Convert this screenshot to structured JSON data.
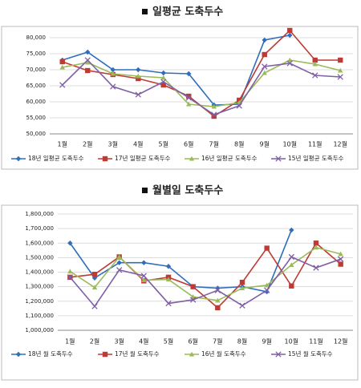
{
  "chart_data": [
    {
      "type": "line",
      "title": "일평균 도축두수",
      "categories": [
        "1월",
        "2월",
        "3월",
        "4월",
        "5월",
        "6월",
        "7월",
        "8월",
        "9월",
        "10월",
        "11월",
        "12월"
      ],
      "ylim": [
        50000,
        80000
      ],
      "yticks": [
        {
          "value": 50000,
          "label": "50,000"
        },
        {
          "value": 55000,
          "label": "55,000"
        },
        {
          "value": 60000,
          "label": "60,000"
        },
        {
          "value": 65000,
          "label": "65,000"
        },
        {
          "value": 70000,
          "label": "70,000"
        },
        {
          "value": 75000,
          "label": "75,000"
        },
        {
          "value": 80000,
          "label": "80,000"
        }
      ],
      "grid": true,
      "series": [
        {
          "name": "18년 일평균 도축두수",
          "color": "#2e6ebd",
          "marker": "diamond",
          "values": [
            73000,
            75500,
            70000,
            70000,
            69000,
            68750,
            59000,
            59250,
            79250,
            80750,
            null,
            null
          ]
        },
        {
          "name": "17년 일평균 도축두수",
          "color": "#be3a34",
          "marker": "square",
          "values": [
            72500,
            69750,
            68500,
            67250,
            65250,
            61750,
            55500,
            60500,
            74750,
            82250,
            73000,
            73000
          ]
        },
        {
          "name": "16년 일평균 도축두수",
          "color": "#9bbb59",
          "marker": "triangle",
          "values": [
            70750,
            72250,
            68750,
            68000,
            67500,
            59250,
            58500,
            59750,
            69000,
            73000,
            71750,
            69750
          ]
        },
        {
          "name": "15년 일평균 도축두수",
          "color": "#7f5fa6",
          "marker": "x",
          "values": [
            65250,
            73000,
            64750,
            62250,
            66250,
            61250,
            56000,
            58750,
            71000,
            72000,
            68250,
            67750
          ]
        }
      ]
    },
    {
      "type": "line",
      "title": "월별일 도축두수",
      "categories": [
        "1월",
        "2월",
        "3월",
        "4월",
        "5월",
        "6월",
        "7월",
        "8월",
        "9월",
        "10월",
        "11월",
        "12월"
      ],
      "ylim": [
        1000000,
        1800000
      ],
      "yticks": [
        {
          "value": 1000000,
          "label": "1,000,000"
        },
        {
          "value": 1100000,
          "label": "1,100,000"
        },
        {
          "value": 1200000,
          "label": "1,200,000"
        },
        {
          "value": 1300000,
          "label": "1,300,000"
        },
        {
          "value": 1400000,
          "label": "1,400,000"
        },
        {
          "value": 1500000,
          "label": "1,500,000"
        },
        {
          "value": 1600000,
          "label": "1,600,000"
        },
        {
          "value": 1700000,
          "label": "1,700,000"
        },
        {
          "value": 1800000,
          "label": "1,800,000"
        }
      ],
      "grid": true,
      "series": [
        {
          "name": "18년 월 도축두수",
          "color": "#2e6ebd",
          "marker": "diamond",
          "values": [
            1600000,
            1360000,
            1465000,
            1465000,
            1440000,
            1300000,
            1290000,
            1300000,
            1265000,
            1690000,
            null,
            null
          ]
        },
        {
          "name": "17년 월 도축두수",
          "color": "#be3a34",
          "marker": "square",
          "values": [
            1365000,
            1385000,
            1505000,
            1340000,
            1365000,
            1300000,
            1155000,
            1330000,
            1565000,
            1305000,
            1600000,
            1455000
          ]
        },
        {
          "name": "16년 월 도축두수",
          "color": "#9bbb59",
          "marker": "triangle",
          "values": [
            1405000,
            1295000,
            1505000,
            1345000,
            1350000,
            1230000,
            1205000,
            1290000,
            1310000,
            1450000,
            1570000,
            1525000
          ]
        },
        {
          "name": "15년 월 도축두수",
          "color": "#7f5fa6",
          "marker": "x",
          "values": [
            1365000,
            1165000,
            1415000,
            1375000,
            1185000,
            1210000,
            1275000,
            1170000,
            1275000,
            1505000,
            1430000,
            1490000
          ]
        }
      ]
    }
  ]
}
